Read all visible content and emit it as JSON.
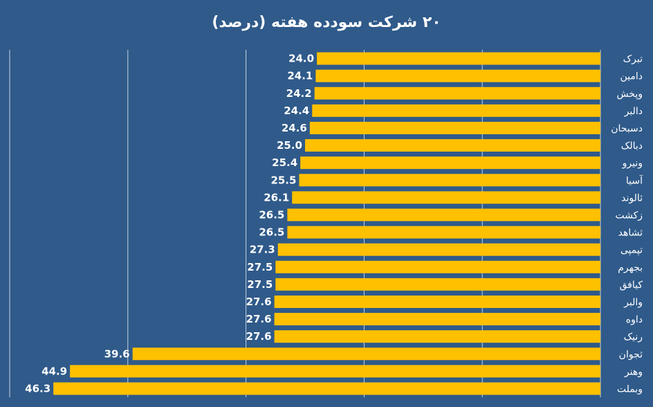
{
  "chart_data": {
    "type": "bar",
    "orientation": "horizontal",
    "title": "۲۰ شرکت سودده هفته (درصد)",
    "categories": [
      "تبرک",
      "دامین",
      "وپخش",
      "دالبر",
      "دسبحان",
      "دبالک",
      "ونیرو",
      "آسیا",
      "ثالوند",
      "زکشت",
      "ثشاهد",
      "تپمپی",
      "بجهرم",
      "کیافق",
      "والبر",
      "داوه",
      "رنیک",
      "ثجوان",
      "وهنر",
      "وبملت"
    ],
    "values": [
      24.0,
      24.1,
      24.2,
      24.4,
      24.6,
      25.0,
      25.4,
      25.5,
      26.1,
      26.5,
      26.5,
      27.3,
      27.5,
      27.5,
      27.6,
      27.6,
      27.6,
      39.6,
      44.9,
      46.3
    ],
    "value_labels": [
      "24.0",
      "24.1",
      "24.2",
      "24.4",
      "24.6",
      "25.0",
      "25.4",
      "25.5",
      "26.1",
      "26.5",
      "26.5",
      "27.3",
      "27.5",
      "27.5",
      "27.6",
      "27.6",
      "27.6",
      "39.6",
      "44.9",
      "46.3"
    ],
    "xlim": [
      0,
      50
    ],
    "axis_reversed": true,
    "grid": true,
    "bar_color": "#ffc000",
    "background_color": "#2f5a8a",
    "text_color": "#ffffff"
  }
}
